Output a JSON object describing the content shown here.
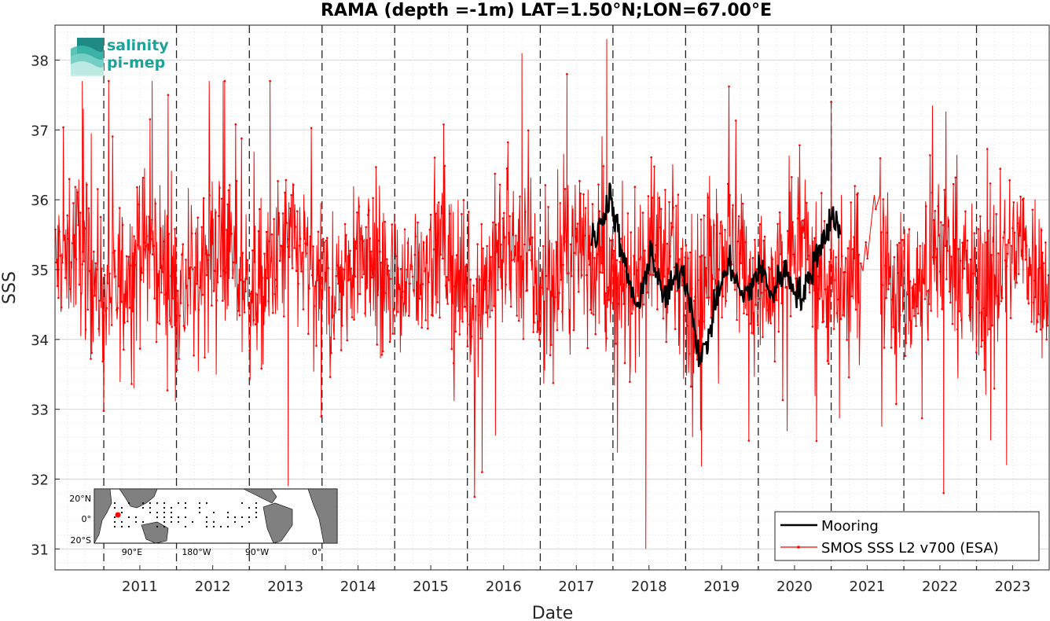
{
  "chart_data": {
    "type": "line",
    "title": "RAMA (depth =-1m) LAT=1.50°N;LON=67.00°E",
    "xlabel": "Date",
    "ylabel": "SSS",
    "xlim": [
      "2010-05-01",
      "2024-01-01"
    ],
    "ylim": [
      30.7,
      38.5
    ],
    "xticks": [
      "2011",
      "2012",
      "2013",
      "2014",
      "2015",
      "2016",
      "2017",
      "2018",
      "2019",
      "2020",
      "2021",
      "2022",
      "2023"
    ],
    "yticks": [
      "31",
      "32",
      "33",
      "34",
      "35",
      "36",
      "37",
      "38"
    ],
    "grid": true,
    "year_dividers": "dashed",
    "legend_position": "bottom-right",
    "series": [
      {
        "name": "Mooring",
        "color": "#000000",
        "style": "thick-line",
        "x": [
          "2017-09-15",
          "2017-10-15",
          "2017-11-15",
          "2017-12-15",
          "2018-01-15",
          "2018-02-15",
          "2018-03-15",
          "2018-04-15",
          "2018-05-15",
          "2018-06-15",
          "2018-07-15",
          "2018-08-15",
          "2018-09-15",
          "2018-10-15",
          "2018-11-15",
          "2018-12-15",
          "2019-01-15",
          "2019-02-15",
          "2019-03-15",
          "2019-04-15",
          "2019-05-15",
          "2019-06-15",
          "2019-07-15",
          "2019-08-15",
          "2019-09-15",
          "2019-10-15",
          "2019-11-15",
          "2019-12-15",
          "2020-01-15",
          "2020-02-15",
          "2020-03-15",
          "2020-04-15",
          "2020-05-15",
          "2020-06-15",
          "2020-07-15",
          "2020-08-15",
          "2020-09-15",
          "2020-10-15",
          "2020-11-15",
          "2020-12-15",
          "2021-01-15",
          "2021-02-15"
        ],
        "y": [
          35.4,
          35.5,
          35.8,
          36.1,
          35.7,
          35.2,
          34.9,
          34.6,
          34.4,
          35.0,
          35.3,
          34.8,
          34.6,
          34.7,
          34.9,
          35.0,
          34.7,
          34.2,
          33.7,
          33.9,
          34.3,
          34.7,
          34.9,
          35.1,
          34.8,
          34.6,
          34.7,
          34.9,
          35.0,
          34.8,
          34.6,
          34.9,
          35.0,
          34.8,
          34.7,
          34.6,
          34.9,
          35.2,
          35.4,
          35.6,
          35.8,
          35.5
        ]
      },
      {
        "name": "SMOS SSS L2 v700 (ESA)",
        "color": "#ff0000",
        "style": "line-with-dot-markers",
        "mean": 35.0,
        "min": 31.0,
        "max": 38.3,
        "notable_points": [
          {
            "x": "2010-09-15",
            "y": 37.7
          },
          {
            "x": "2011-06-01",
            "y": 33.3
          },
          {
            "x": "2011-09-01",
            "y": 37.7
          },
          {
            "x": "2011-11-20",
            "y": 37.5
          },
          {
            "x": "2013-04-15",
            "y": 37.7
          },
          {
            "x": "2013-07-15",
            "y": 31.9
          },
          {
            "x": "2016-03-15",
            "y": 32.1
          },
          {
            "x": "2016-10-01",
            "y": 38.1
          },
          {
            "x": "2017-05-15",
            "y": 37.8
          },
          {
            "x": "2017-12-01",
            "y": 38.3
          },
          {
            "x": "2018-06-15",
            "y": 31.0
          },
          {
            "x": "2021-01-01",
            "y": 37.4
          },
          {
            "x": "2022-07-20",
            "y": 31.8
          },
          {
            "x": "2023-06-01",
            "y": 32.2
          }
        ]
      }
    ]
  },
  "logo": {
    "line1": "salinity",
    "line2": "pi-mep",
    "color": "#1aa39b"
  },
  "inset_map": {
    "lat_labels": [
      "20°N",
      "0°",
      "20°S"
    ],
    "lon_labels": [
      "90°E",
      "180°W",
      "90°W",
      "0°"
    ],
    "land_color": "#808080",
    "station_marker_color": "#ff0000"
  }
}
